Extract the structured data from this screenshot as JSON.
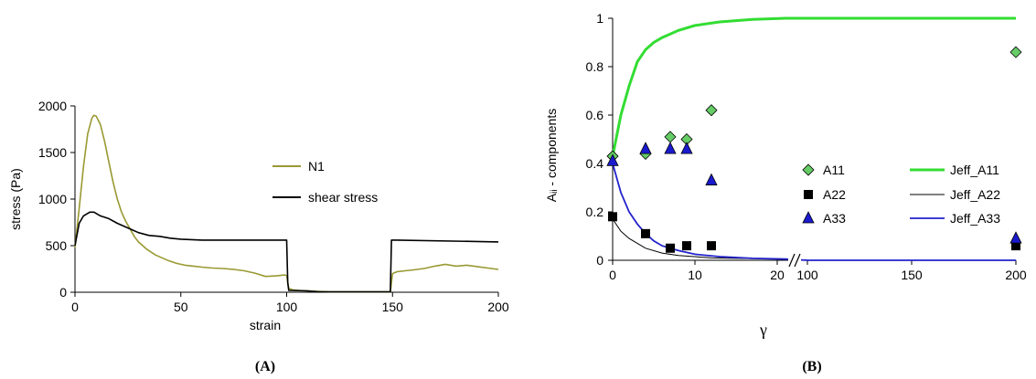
{
  "panels": [
    {
      "label": "(A)"
    },
    {
      "label": "(B)"
    }
  ],
  "chart_data": [
    {
      "type": "line",
      "xlabel": "strain",
      "ylabel": "stress (Pa)",
      "xlim": [
        0,
        200
      ],
      "ylim": [
        0,
        2000
      ],
      "xticks": [
        "0",
        "50",
        "100",
        "150",
        "200"
      ],
      "yticks": [
        "0",
        "500",
        "1000",
        "1500",
        "2000"
      ],
      "legend_position": "right",
      "series": [
        {
          "name": "N1",
          "color": "#999933",
          "points": [
            [
              0,
              480
            ],
            [
              2,
              900
            ],
            [
              4,
              1350
            ],
            [
              6,
              1700
            ],
            [
              8,
              1870
            ],
            [
              9,
              1900
            ],
            [
              10,
              1890
            ],
            [
              12,
              1800
            ],
            [
              14,
              1620
            ],
            [
              16,
              1400
            ],
            [
              18,
              1180
            ],
            [
              20,
              1000
            ],
            [
              22,
              860
            ],
            [
              24,
              760
            ],
            [
              26,
              680
            ],
            [
              28,
              600
            ],
            [
              30,
              540
            ],
            [
              32,
              500
            ],
            [
              34,
              460
            ],
            [
              36,
              430
            ],
            [
              38,
              400
            ],
            [
              40,
              380
            ],
            [
              44,
              340
            ],
            [
              48,
              310
            ],
            [
              52,
              290
            ],
            [
              56,
              280
            ],
            [
              60,
              270
            ],
            [
              65,
              260
            ],
            [
              70,
              255
            ],
            [
              75,
              245
            ],
            [
              80,
              230
            ],
            [
              85,
              205
            ],
            [
              90,
              170
            ],
            [
              95,
              175
            ],
            [
              99,
              185
            ],
            [
              100,
              180
            ],
            [
              101,
              40
            ],
            [
              103,
              25
            ],
            [
              106,
              20
            ],
            [
              110,
              15
            ],
            [
              115,
              10
            ],
            [
              120,
              5
            ],
            [
              140,
              5
            ],
            [
              148,
              5
            ],
            [
              149,
              5
            ],
            [
              150,
              200
            ],
            [
              152,
              220
            ],
            [
              156,
              230
            ],
            [
              160,
              240
            ],
            [
              165,
              255
            ],
            [
              170,
              280
            ],
            [
              175,
              300
            ],
            [
              180,
              280
            ],
            [
              185,
              290
            ],
            [
              190,
              275
            ],
            [
              195,
              260
            ],
            [
              200,
              245
            ]
          ]
        },
        {
          "name": "shear stress",
          "color": "#000000",
          "points": [
            [
              0,
              500
            ],
            [
              2,
              740
            ],
            [
              4,
              820
            ],
            [
              7,
              860
            ],
            [
              9,
              860
            ],
            [
              12,
              820
            ],
            [
              16,
              790
            ],
            [
              20,
              740
            ],
            [
              25,
              690
            ],
            [
              30,
              640
            ],
            [
              35,
              610
            ],
            [
              40,
              600
            ],
            [
              45,
              580
            ],
            [
              50,
              570
            ],
            [
              60,
              560
            ],
            [
              80,
              560
            ],
            [
              100,
              560
            ],
            [
              100.5,
              100
            ],
            [
              101,
              20
            ],
            [
              110,
              15
            ],
            [
              115,
              5
            ],
            [
              148,
              5
            ],
            [
              149,
              5
            ],
            [
              149.5,
              560
            ],
            [
              152,
              560
            ],
            [
              200,
              540
            ]
          ]
        }
      ]
    },
    {
      "type": "scatter",
      "xlabel": "γ",
      "ylabel": "Aᵢᵢ - components",
      "ylim": [
        0,
        1
      ],
      "xticks": [
        "0",
        "10",
        "20",
        "100",
        "150",
        "200"
      ],
      "yticks": [
        "0",
        "0.2",
        "0.4",
        "0.6",
        "0.8",
        "1"
      ],
      "axis_break": "between 20 and 100",
      "legend_position": "center-right",
      "series": [
        {
          "name": "A11",
          "marker": "diamond",
          "color": "#66cc66",
          "points": [
            [
              0,
              0.43
            ],
            [
              4,
              0.44
            ],
            [
              7,
              0.51
            ],
            [
              9,
              0.5
            ],
            [
              12,
              0.62
            ],
            [
              200,
              0.86
            ]
          ]
        },
        {
          "name": "A22",
          "marker": "square",
          "color": "#000000",
          "points": [
            [
              0,
              0.18
            ],
            [
              4,
              0.11
            ],
            [
              7,
              0.05
            ],
            [
              9,
              0.06
            ],
            [
              12,
              0.06
            ],
            [
              200,
              0.06
            ]
          ]
        },
        {
          "name": "A33",
          "marker": "triangle",
          "color": "#1a1acc",
          "points": [
            [
              0,
              0.41
            ],
            [
              4,
              0.46
            ],
            [
              7,
              0.46
            ],
            [
              9,
              0.46
            ],
            [
              12,
              0.33
            ],
            [
              200,
              0.09
            ]
          ]
        },
        {
          "name": "Jeff_A11",
          "line": true,
          "color": "#33dd33",
          "points": [
            [
              0,
              0.43
            ],
            [
              1,
              0.6
            ],
            [
              2,
              0.72
            ],
            [
              3,
              0.82
            ],
            [
              4,
              0.87
            ],
            [
              5,
              0.9
            ],
            [
              6,
              0.92
            ],
            [
              8,
              0.95
            ],
            [
              10,
              0.97
            ],
            [
              13,
              0.985
            ],
            [
              17,
              0.995
            ],
            [
              21,
              1.0
            ],
            [
              100,
              1.0
            ],
            [
              150,
              1.0
            ],
            [
              200,
              1.0
            ]
          ]
        },
        {
          "name": "Jeff_A22",
          "line": true,
          "color": "#000000",
          "points": [
            [
              0,
              0.17
            ],
            [
              1,
              0.12
            ],
            [
              2,
              0.09
            ],
            [
              3,
              0.07
            ],
            [
              4,
              0.05
            ],
            [
              6,
              0.03
            ],
            [
              8,
              0.02
            ],
            [
              12,
              0.01
            ],
            [
              21,
              0.005
            ],
            [
              100,
              0.0
            ],
            [
              200,
              0.0
            ]
          ]
        },
        {
          "name": "Jeff_A33",
          "line": true,
          "color": "#2222cc",
          "points": [
            [
              0,
              0.4
            ],
            [
              1,
              0.28
            ],
            [
              2,
              0.2
            ],
            [
              3,
              0.15
            ],
            [
              4,
              0.11
            ],
            [
              5,
              0.08
            ],
            [
              6,
              0.06
            ],
            [
              8,
              0.04
            ],
            [
              10,
              0.025
            ],
            [
              13,
              0.015
            ],
            [
              17,
              0.008
            ],
            [
              21,
              0.005
            ],
            [
              100,
              0.0
            ],
            [
              200,
              0.0
            ]
          ]
        }
      ]
    }
  ]
}
